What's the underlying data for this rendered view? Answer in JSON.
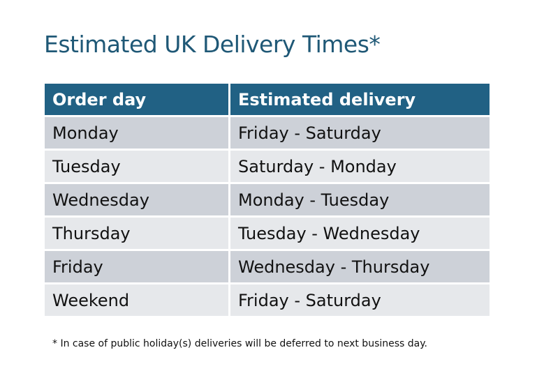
{
  "title": "Estimated UK Delivery Times*",
  "table": {
    "headers": [
      "Order day",
      "Estimated delivery"
    ],
    "rows": [
      [
        "Monday",
        "Friday - Saturday"
      ],
      [
        "Tuesday",
        "Saturday - Monday"
      ],
      [
        "Wednesday",
        "Monday - Tuesday"
      ],
      [
        "Thursday",
        "Tuesday - Wednesday"
      ],
      [
        "Friday",
        "Wednesday - Thursday"
      ],
      [
        "Weekend",
        "Friday - Saturday"
      ]
    ]
  },
  "footnote": "* In case of public holiday(s) deliveries will be deferred to next business day.",
  "colors": {
    "header": "#216184",
    "title": "#1f5876",
    "row_dark": "#cdd1d8",
    "row_light": "#e6e8eb"
  }
}
